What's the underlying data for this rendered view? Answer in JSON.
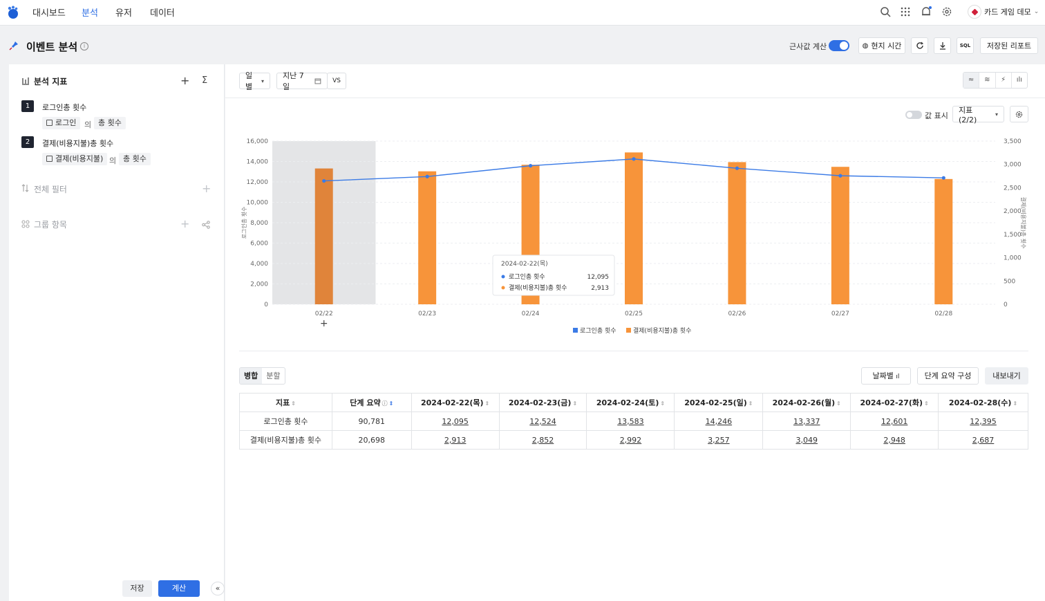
{
  "nav": {
    "items": [
      "대시보드",
      "분석",
      "유저",
      "데이터"
    ],
    "active_index": 1,
    "user": "카드 게임 데모"
  },
  "header": {
    "title": "이벤트 분석",
    "approx_label": "근사값 계산",
    "approx_on": true,
    "local_time": "현지 시간",
    "sql": "SQL",
    "saved_report": "저장된 리포트"
  },
  "left": {
    "metrics_title": "분석 지표",
    "sigma": "Σ",
    "metrics": [
      {
        "num": "1",
        "name": "로그인총 횟수",
        "event": "로그인",
        "of": "의",
        "agg": "총 횟수"
      },
      {
        "num": "2",
        "name": "결제(비용지불)총 횟수",
        "event": "결제(비용지불)",
        "of": "의",
        "agg": "총 횟수"
      }
    ],
    "filter_title": "전체 필터",
    "group_title": "그룹 항목",
    "save": "저장",
    "calculate": "계산",
    "collapse": "«"
  },
  "toolbar": {
    "granularity": "일별",
    "range": "지난 7일",
    "vs": "VS",
    "show_values": "값 표시",
    "metric_select": "지표 (2/2)"
  },
  "chart_data": {
    "type": "bar",
    "categories": [
      "02/22",
      "02/23",
      "02/24",
      "02/25",
      "02/26",
      "02/27",
      "02/28"
    ],
    "series": [
      {
        "name": "로그인총 횟수",
        "type": "line",
        "axis": "left",
        "color": "#3b7be6",
        "values": [
          12095,
          12524,
          13583,
          14246,
          13337,
          12601,
          12395
        ]
      },
      {
        "name": "결제(비용지불)총 횟수",
        "type": "bar",
        "axis": "right",
        "color": "#f7943a",
        "values": [
          2913,
          2852,
          2992,
          3257,
          3049,
          2948,
          2687
        ]
      }
    ],
    "ylabel": "로그인총 횟수",
    "y2label": "결제(비용지불)총 횟수",
    "ylim": [
      0,
      16000
    ],
    "y2lim": [
      0,
      3500
    ],
    "yticks": [
      "0",
      "2,000",
      "4,000",
      "6,000",
      "8,000",
      "10,000",
      "12,000",
      "14,000",
      "16,000"
    ],
    "y2ticks": [
      "0",
      "500",
      "1,000",
      "1,500",
      "2,000",
      "2,500",
      "3,000",
      "3,500"
    ],
    "legend_position": "bottom",
    "highlight_category": "02/22",
    "tooltip": {
      "title": "2024-02-22(목)",
      "rows": [
        {
          "name": "로그인총 횟수",
          "value": "12,095"
        },
        {
          "name": "결제(비용지불)총 횟수",
          "value": "2,913"
        }
      ]
    }
  },
  "table": {
    "modes": [
      "병합",
      "분할"
    ],
    "by_date": "날짜별",
    "summary_config": "단계 요약 구성",
    "export": "내보내기",
    "headers": [
      "지표",
      "단계 요약",
      "2024-02-22(목)",
      "2024-02-23(금)",
      "2024-02-24(토)",
      "2024-02-25(일)",
      "2024-02-26(월)",
      "2024-02-27(화)",
      "2024-02-28(수)"
    ],
    "rows": [
      {
        "metric": "로그인총 횟수",
        "summary": "90,781",
        "values": [
          "12,095",
          "12,524",
          "13,583",
          "14,246",
          "13,337",
          "12,601",
          "12,395"
        ]
      },
      {
        "metric": "결제(비용지불)총 횟수",
        "summary": "20,698",
        "values": [
          "2,913",
          "2,852",
          "2,992",
          "3,257",
          "3,049",
          "2,948",
          "2,687"
        ]
      }
    ]
  }
}
